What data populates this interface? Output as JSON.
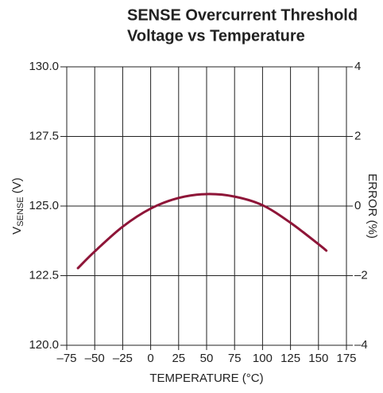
{
  "chart_data": {
    "type": "line",
    "title": [
      "SENSE Overcurrent Threshold",
      "Voltage vs Temperature"
    ],
    "x_label": "TEMPERATURE (°C)",
    "y_label": {
      "main": "V",
      "sub": "SENSE",
      "unit": " (V)"
    },
    "y2_label": "ERROR (%)",
    "x": [
      -65,
      -50,
      -25,
      0,
      25,
      50,
      75,
      100,
      125,
      150,
      157
    ],
    "series": [
      {
        "name": "VSENSE",
        "color": "#8e1538",
        "values": [
          122.77,
          123.37,
          124.26,
          124.91,
          125.29,
          125.43,
          125.34,
          125.03,
          124.4,
          123.63,
          123.4
        ]
      }
    ],
    "xlim": [
      -75,
      175
    ],
    "xticks": [
      {
        "value": -75,
        "label": "–75"
      },
      {
        "value": -50,
        "label": "–50"
      },
      {
        "value": -25,
        "label": "–25"
      },
      0,
      25,
      50,
      75,
      100,
      125,
      150,
      175
    ],
    "ylim": [
      120,
      130
    ],
    "yticks": [
      {
        "value": 120,
        "label": "120.0"
      },
      {
        "value": 122.5,
        "label": "122.5"
      },
      {
        "value": 125,
        "label": "125.0"
      },
      {
        "value": 127.5,
        "label": "127.5"
      },
      {
        "value": 130,
        "label": "130.0"
      }
    ],
    "y2lim": [
      -4,
      4
    ],
    "y2ticks": [
      {
        "value": -4,
        "label": "–4"
      },
      {
        "value": -2,
        "label": "–2"
      },
      0,
      2,
      4
    ],
    "grid": true
  }
}
